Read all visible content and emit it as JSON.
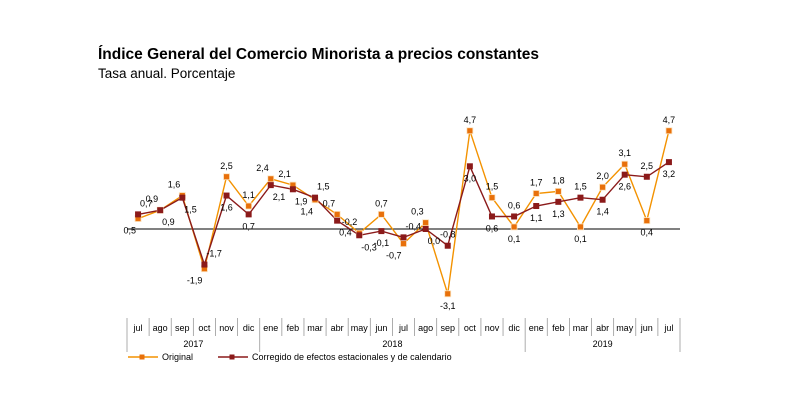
{
  "chart_data": {
    "type": "line",
    "title": "Índice General del Comercio Minorista a precios constantes",
    "subtitle": "Tasa anual. Porcentaje",
    "categories": [
      "jul",
      "ago",
      "sep",
      "oct",
      "nov",
      "dic",
      "ene",
      "feb",
      "mar",
      "abr",
      "may",
      "jun",
      "jul",
      "ago",
      "sep",
      "oct",
      "nov",
      "dic",
      "ene",
      "feb",
      "mar",
      "abr",
      "may",
      "jun",
      "jul"
    ],
    "years": [
      {
        "label": "2017",
        "start": 0,
        "end": 5
      },
      {
        "label": "2018",
        "start": 6,
        "end": 17
      },
      {
        "label": "2019",
        "start": 18,
        "end": 24
      }
    ],
    "series": [
      {
        "name": "Original",
        "color": "#F39200",
        "marker_color": "#E8700A",
        "values": [
          0.5,
          0.9,
          1.6,
          -1.9,
          2.5,
          1.1,
          2.4,
          2.1,
          1.4,
          0.7,
          -0.2,
          0.7,
          -0.7,
          0.3,
          -3.1,
          4.7,
          1.5,
          0.1,
          1.7,
          1.8,
          0.1,
          2.0,
          3.1,
          0.4,
          4.7
        ],
        "labels": [
          "0,5",
          "0,9",
          "1,6",
          "-1,9",
          "2,5",
          "1,1",
          "2,4",
          "2,1",
          "1,4",
          "0,7",
          "-0,2",
          "0,7",
          "-0,7",
          "0,3",
          "-3,1",
          "4,7",
          "1,5",
          "0,1",
          "1,7",
          "1,8",
          "0,1",
          "2,0",
          "3,1",
          "0,4",
          "4,7"
        ]
      },
      {
        "name": "Corregido de efectos estacionales y de calendario",
        "color": "#8B1A1A",
        "marker_color": "#8B1A1A",
        "values": [
          0.7,
          0.9,
          1.5,
          -1.7,
          1.6,
          0.7,
          2.1,
          1.9,
          1.5,
          0.4,
          -0.3,
          -0.1,
          -0.4,
          0.0,
          -0.8,
          3.0,
          0.6,
          0.6,
          1.1,
          1.3,
          1.5,
          1.4,
          2.6,
          2.5,
          3.2
        ],
        "labels": [
          "0,7",
          "0,9",
          "1,5",
          "-1,7",
          "1,6",
          "0,7",
          "2,1",
          "1,9",
          "1,5",
          "0,4",
          "-0,3",
          "-0,1",
          "-0,4",
          "0,0",
          "-0,8",
          "3,0",
          "0,6",
          "0,6",
          "1,1",
          "1,3",
          "1,5",
          "1,4",
          "2,6",
          "2,5",
          "3,2"
        ]
      }
    ],
    "ylim": [
      -3.1,
      4.7
    ],
    "grid": false,
    "legend_position": "bottom-left"
  }
}
